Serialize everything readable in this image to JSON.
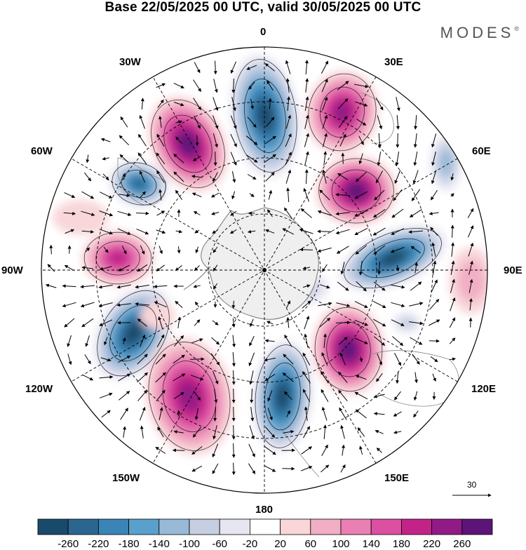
{
  "title": "Base 22/05/2025 00 UTC, valid 30/05/2025 00 UTC",
  "brand": "MODES",
  "brand_mark": "®",
  "longitude_labels": {
    "lon_0": "0",
    "lon_30e": "30E",
    "lon_60e": "60E",
    "lon_90e": "90E",
    "lon_120e": "120E",
    "lon_150e": "150E",
    "lon_180": "180",
    "lon_150w": "150W",
    "lon_120w": "120W",
    "lon_90w": "90W",
    "lon_60w": "60W",
    "lon_30w": "30W"
  },
  "reference_vector": "30",
  "colorbar": {
    "labels": [
      "-260",
      "-220",
      "-180",
      "-140",
      "-100",
      "-60",
      "-20",
      "20",
      "60",
      "100",
      "140",
      "180",
      "220",
      "260"
    ],
    "colors": [
      "#1a4a6b",
      "#2a6690",
      "#3a84b6",
      "#5aa0cc",
      "#98b9d8",
      "#c6cfe2",
      "#e6e5f2",
      "#ffffff",
      "#f8d6d9",
      "#f2aec4",
      "#ea7fb4",
      "#dc4fa1",
      "#c32388",
      "#921a86",
      "#5c1478"
    ]
  },
  "colors": {
    "background": "#ffffff",
    "land": "#efefef",
    "coast": "#777777"
  }
}
